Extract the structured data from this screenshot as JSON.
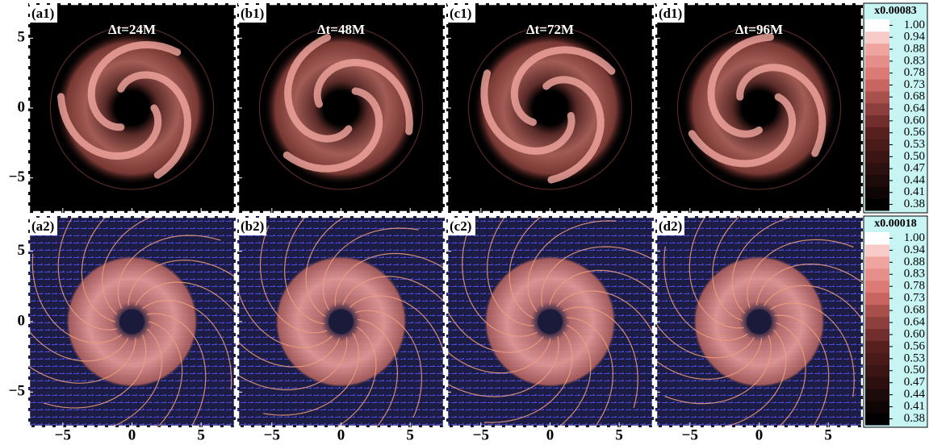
{
  "chart_data": {
    "type": "heatmap_grid",
    "xlim": [
      -7.5,
      7.5
    ],
    "ylim": [
      -7.5,
      7.5
    ],
    "xticks": [
      {
        "value": -5,
        "label": "−5"
      },
      0,
      5
    ],
    "yticks": [
      {
        "value": -5,
        "label": "−5"
      },
      0,
      5
    ],
    "panels": [
      {
        "label": "(a1)",
        "title": "Δt=24M"
      },
      {
        "label": "(b1)",
        "title": "Δt=48M"
      },
      {
        "label": "(c1)",
        "title": "Δt=72M"
      },
      {
        "label": "(d1)",
        "title": "Δt=96M"
      },
      {
        "label": "(a2)"
      },
      {
        "label": "(b2)"
      },
      {
        "label": "(c2)"
      },
      {
        "label": "(d2)"
      }
    ],
    "colorbars": [
      {
        "multiplier": "x0.00083",
        "ticks": [
          0.38,
          0.41,
          0.44,
          0.47,
          {
            "value": 0.5,
            "label": "0.50"
          },
          0.53,
          0.56,
          {
            "value": 0.6,
            "label": "0.60"
          },
          0.64,
          0.68,
          0.73,
          0.78,
          0.83,
          0.88,
          0.94,
          {
            "value": 1,
            "label": "1.00"
          }
        ]
      },
      {
        "multiplier": "x0.00018",
        "ticks": [
          0.38,
          0.41,
          0.44,
          0.47,
          {
            "value": 0.5,
            "label": "0.50"
          },
          0.53,
          0.56,
          {
            "value": 0.6,
            "label": "0.60"
          },
          0.64,
          0.68,
          0.73,
          0.78,
          0.83,
          0.88,
          0.94,
          {
            "value": 1,
            "label": "1.00"
          }
        ]
      }
    ]
  }
}
